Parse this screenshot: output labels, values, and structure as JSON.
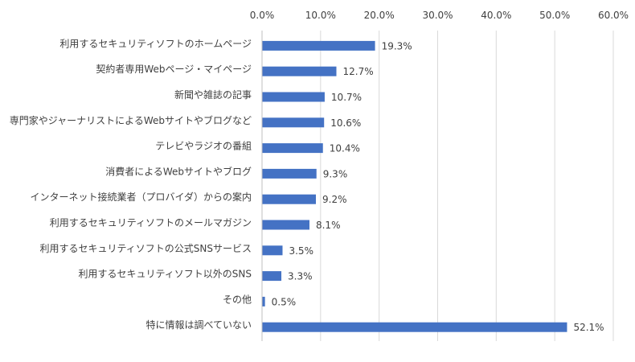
{
  "chart_data": {
    "type": "bar",
    "orientation": "horizontal",
    "categories": [
      "利用するセキュリティソフトのホームページ",
      "契約者専用Webページ・マイページ",
      "新聞や雑誌の記事",
      "専門家やジャーナリストによるWebサイトやブログなど",
      "テレビやラジオの番組",
      "消費者によるWebサイトやブログ",
      "インターネット接続業者（プロバイダ）からの案内",
      "利用するセキュリティソフトのメールマガジン",
      "利用するセキュリティソフトの公式SNSサービス",
      "利用するセキュリティソフト以外のSNS",
      "その他",
      "特に情報は調べていない"
    ],
    "values": [
      19.3,
      12.7,
      10.7,
      10.6,
      10.4,
      9.3,
      9.2,
      8.1,
      3.5,
      3.3,
      0.5,
      52.1
    ],
    "data_labels": [
      "19.3%",
      "12.7%",
      "10.7%",
      "10.6%",
      "10.4%",
      "9.3%",
      "9.2%",
      "8.1%",
      "3.5%",
      "3.3%",
      "0.5%",
      "52.1%"
    ],
    "xlim": [
      0,
      60
    ],
    "ticks": [
      0,
      10,
      20,
      30,
      40,
      50,
      60
    ],
    "tick_labels": [
      "0.0%",
      "10.0%",
      "20.0%",
      "30.0%",
      "40.0%",
      "50.0%",
      "60.0%"
    ],
    "axis_position": "top",
    "grid": true,
    "legend": "none",
    "bar_color": "#4472c4"
  }
}
